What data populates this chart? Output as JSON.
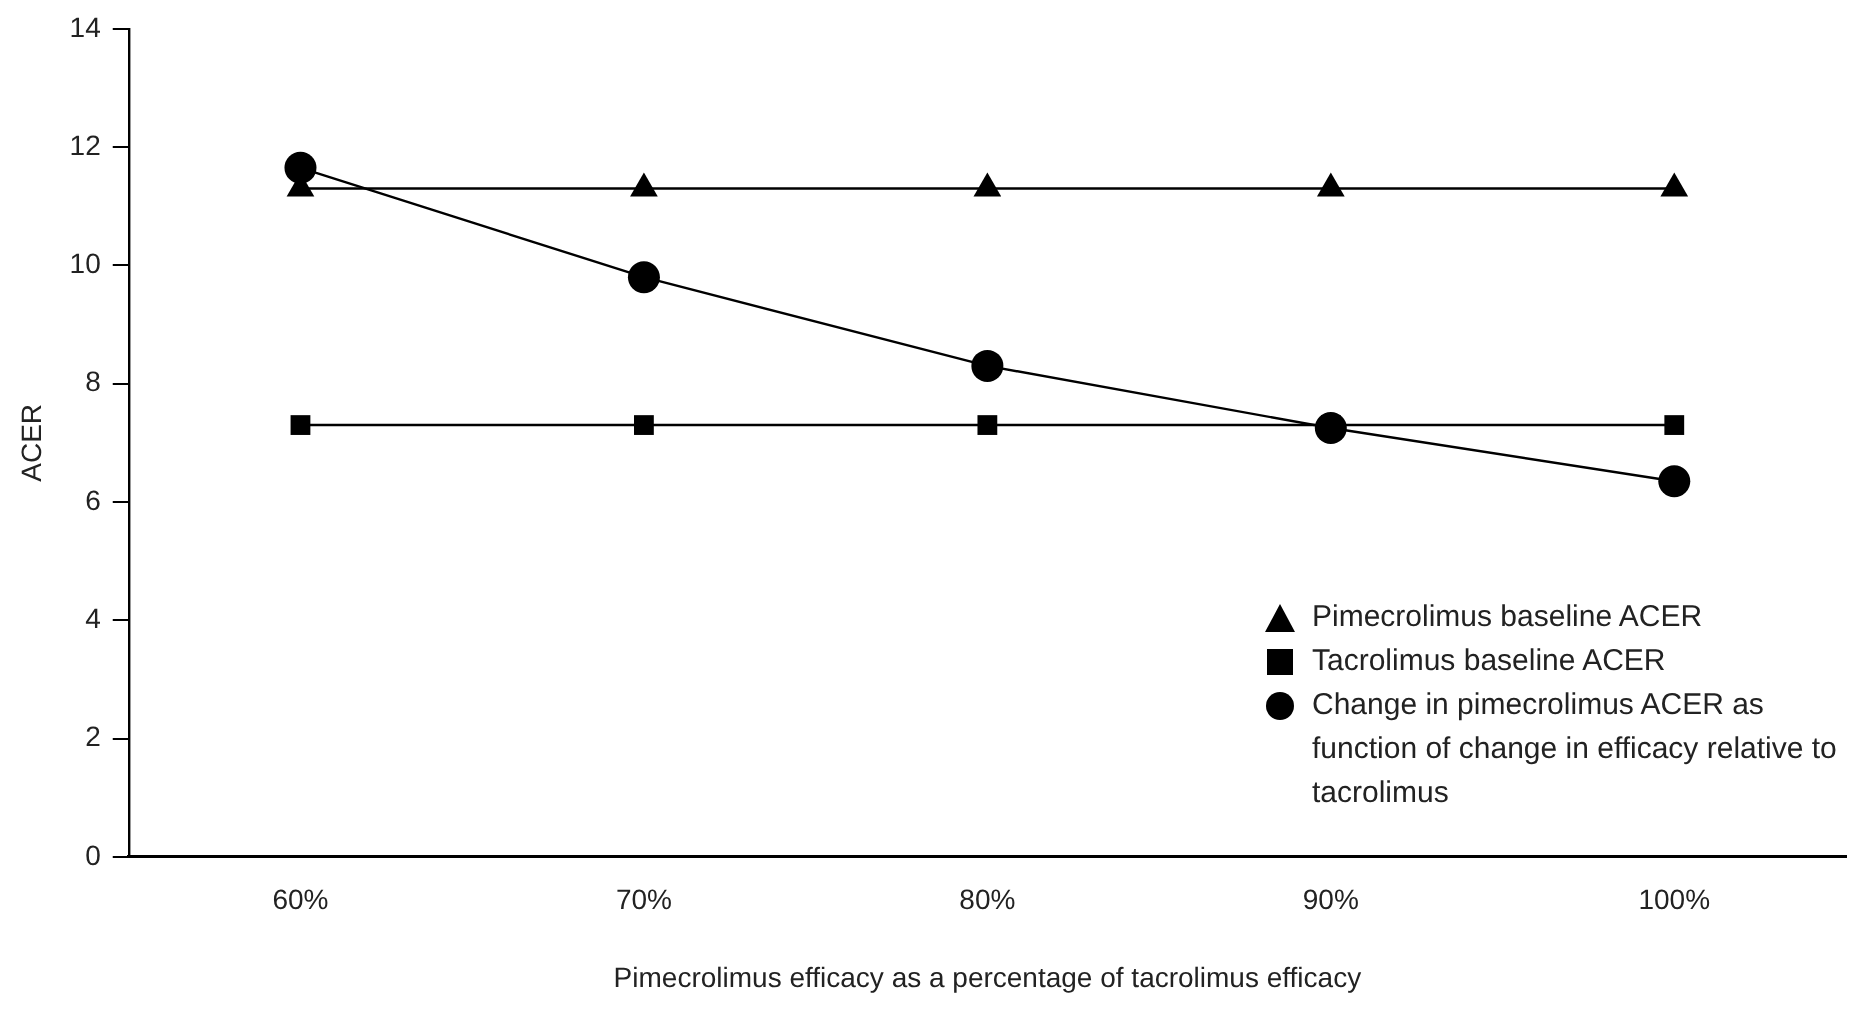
{
  "chart_data": {
    "type": "line",
    "xlabel": "Pimecrolimus efficacy as a percentage of tacrolimus efficacy",
    "ylabel": "ACER",
    "categories": [
      "60%",
      "70%",
      "80%",
      "90%",
      "100%"
    ],
    "series": [
      {
        "name": "Pimecrolimus baseline ACER",
        "color": "#000000",
        "marker": "triangle",
        "values": [
          11.3,
          11.3,
          11.3,
          11.3,
          11.3
        ]
      },
      {
        "name": "Tacrolimus baseline ACER",
        "color": "#000000",
        "marker": "square",
        "values": [
          7.3,
          7.3,
          7.3,
          7.3,
          7.3
        ]
      },
      {
        "name": "Change in pimecrolimus ACER as function of change in efficacy relative to tacrolimus",
        "color": "#000000",
        "marker": "circle",
        "values": [
          11.65,
          9.8,
          8.3,
          7.25,
          6.35
        ]
      }
    ],
    "ylim": [
      0,
      14
    ],
    "yticks": [
      0,
      2,
      4,
      6,
      8,
      10,
      12,
      14
    ],
    "grid": false,
    "legend": "bottom right",
    "line_style": "solid"
  }
}
